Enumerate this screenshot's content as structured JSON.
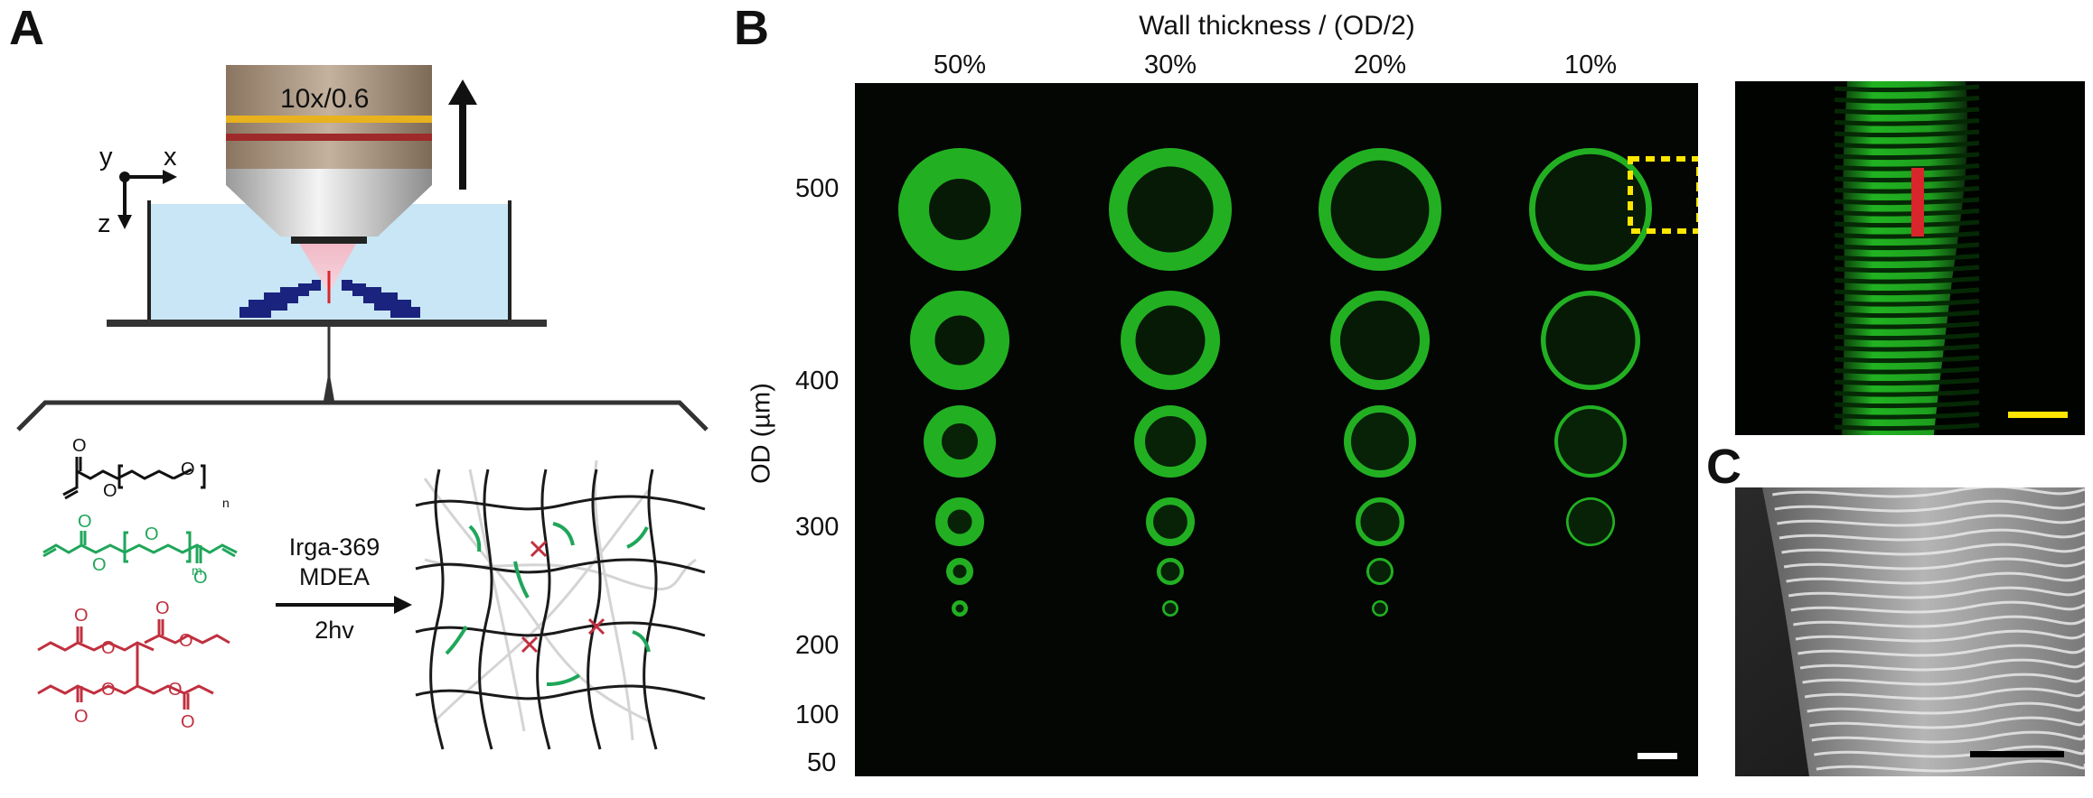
{
  "panels": {
    "a": "A",
    "b": "B",
    "c": "C"
  },
  "panel_a": {
    "objective_label": "10x/0.6",
    "axes": {
      "x": "x",
      "y": "y",
      "z": "z"
    },
    "reaction": {
      "line1": "Irga-369",
      "line2": "MDEA",
      "line3": "2hv"
    },
    "subscripts": {
      "n": "n",
      "m": "m"
    },
    "colors": {
      "water": "#c8e6f5",
      "structure": "#1a237e",
      "peg_acrylate": "#111111",
      "pegda": "#1fa65a",
      "crosslinker": "#c0303f",
      "objective_gold": "#e8b21f",
      "objective_red": "#9e2a2a"
    }
  },
  "panel_b": {
    "title": "Wall thickness / (OD/2)",
    "columns": [
      "50%",
      "30%",
      "20%",
      "10%"
    ],
    "ylabel": "OD (µm)",
    "rows": [
      "500",
      "400",
      "300",
      "200",
      "100",
      "50"
    ],
    "ring_color": "#22b022",
    "scale_bar_color": "#ffffff",
    "highlight_box_color": "#ffe600"
  },
  "panel_zoom": {
    "marker_color": "#d9262c",
    "scale_bar_color": "#ffe600"
  },
  "panel_c": {
    "scale_bar_color": "#000000"
  }
}
